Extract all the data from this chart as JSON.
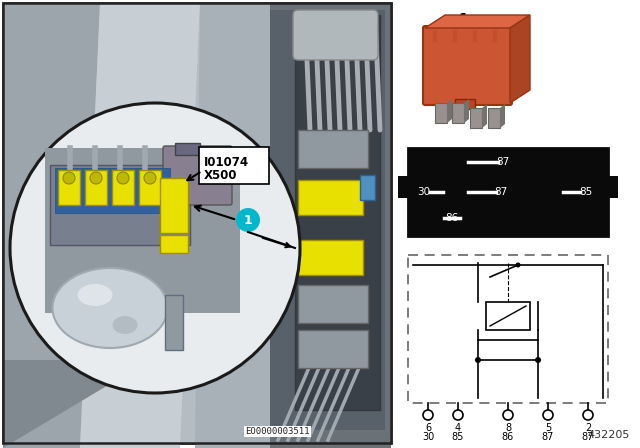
{
  "bg_color": "#ffffff",
  "left_bg": "#b8bec4",
  "left_border": "#222222",
  "circle_edge": "#1a1a1a",
  "circle_fill": "#d8dde0",
  "eo_number": "EO0000003511",
  "part_number": "432205",
  "connector_label_1": "I01074",
  "connector_label_2": "X500",
  "callout_circle_color": "#00b8cc",
  "callout_text_color": "#ffffff",
  "yellow": "#e8e000",
  "yellow_edge": "#a09000",
  "relay_color": "#cc5533",
  "relay_edge": "#993311",
  "pin_metal": "#aaaaaa",
  "pinout_bg": "#111111",
  "schem_border": "#666666",
  "white": "#ffffff",
  "black": "#000000",
  "gray_bg": "#909aa0",
  "gray_light": "#c0c8cc",
  "gray_mid": "#808890",
  "gray_dark": "#505860",
  "car_bg_light": "#c0c8cc",
  "car_bg_dark": "#888e94",
  "car_pillar": "#9098a0",
  "wires_area_bg": "#5c6268"
}
